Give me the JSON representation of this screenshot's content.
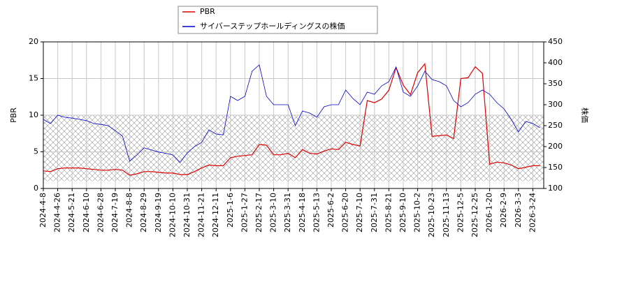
{
  "chart_data": {
    "type": "line",
    "categories": [
      "2024-4-8",
      null,
      "2024-4-26",
      null,
      "2024-5-21",
      null,
      "2024-6-10",
      null,
      "2024-6-28",
      null,
      "2024-7-19",
      null,
      "2024-8-8",
      null,
      "2024-8-29",
      null,
      "2024-9-19",
      null,
      "2024-10-10",
      null,
      "2024-10-31",
      null,
      "2024-11-21",
      null,
      "2024-12-11",
      null,
      "2025-1-6",
      null,
      "2025-1-27",
      null,
      "2025-2-17",
      null,
      "2025-3-10",
      null,
      "2025-3-31",
      null,
      "2025-4-18",
      null,
      "2025-5-13",
      null,
      "2025-6-2",
      null,
      "2025-6-20",
      null,
      "2025-7-10",
      null,
      "2025-7-31",
      null,
      "2025-8-21",
      null,
      "2025-9-10",
      null,
      "2025-10-2",
      null,
      "2025-10-23",
      null,
      "2025-11-13",
      null,
      "2025-12-5",
      null,
      "2025-12-25",
      null,
      "2026-1-20",
      null,
      "2026-2-9",
      null,
      "2026-3-3",
      null,
      "2026-3-24",
      null
    ],
    "series": [
      {
        "name": "PBR",
        "color": "#dd0000",
        "axis": "y",
        "values": [
          2.4,
          2.3,
          2.7,
          2.8,
          2.8,
          2.8,
          2.7,
          2.6,
          2.5,
          2.5,
          2.6,
          2.5,
          1.8,
          2.0,
          2.3,
          2.3,
          2.2,
          2.1,
          2.1,
          1.9,
          1.9,
          2.3,
          2.8,
          3.2,
          3.1,
          3.1,
          4.2,
          4.4,
          4.5,
          4.6,
          6.0,
          5.9,
          4.6,
          4.6,
          4.8,
          4.2,
          5.3,
          4.8,
          4.7,
          5.1,
          5.4,
          5.3,
          6.3,
          6.0,
          5.8,
          12.0,
          11.7,
          12.2,
          13.4,
          16.5,
          14.1,
          12.8,
          15.8,
          17.0,
          7.1,
          7.2,
          7.3,
          6.8,
          15.0,
          15.1,
          16.6,
          15.7,
          3.3,
          3.6,
          3.5,
          3.2,
          2.7,
          2.9,
          3.1,
          3.1
        ]
      },
      {
        "name": "サイバーステップホールディングスの株価",
        "color": "#0000cc",
        "axis": "y2",
        "values": [
          265,
          255,
          275,
          270,
          268,
          265,
          262,
          255,
          253,
          250,
          238,
          225,
          165,
          180,
          197,
          192,
          187,
          184,
          180,
          162,
          185,
          200,
          210,
          240,
          230,
          228,
          320,
          310,
          320,
          380,
          395,
          320,
          300,
          300,
          300,
          250,
          285,
          280,
          270,
          295,
          300,
          300,
          335,
          315,
          300,
          330,
          325,
          345,
          355,
          390,
          330,
          320,
          345,
          380,
          360,
          355,
          345,
          310,
          295,
          305,
          325,
          335,
          325,
          305,
          290,
          265,
          235,
          260,
          255,
          245
        ]
      }
    ],
    "ylabel": "PBR",
    "y2label": "株価",
    "ylim": [
      0,
      20
    ],
    "yticks": [
      0,
      5,
      10,
      15,
      20
    ],
    "y2lim": [
      100,
      450
    ],
    "y2ticks": [
      100,
      150,
      200,
      250,
      300,
      350,
      400,
      450
    ],
    "band": [
      1,
      10
    ],
    "grid": true
  }
}
